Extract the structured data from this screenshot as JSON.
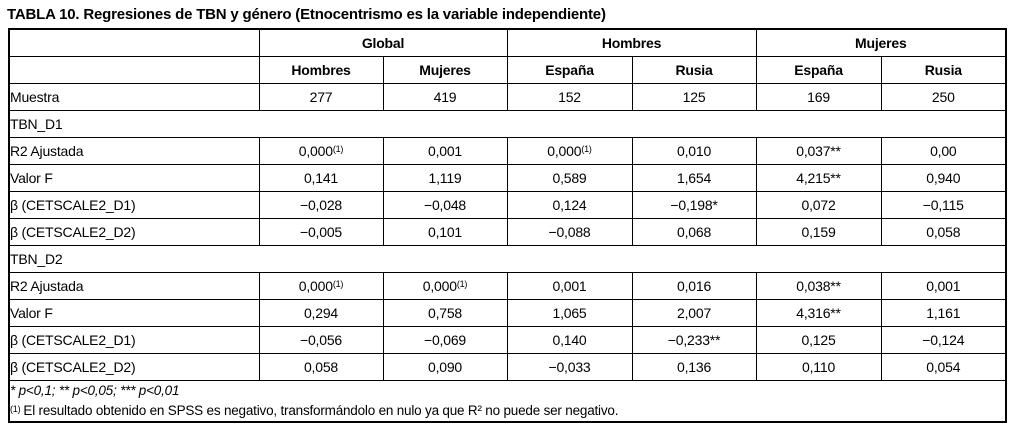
{
  "title": "TABLA 10. Regresiones de TBN y género (Etnocentrismo es la variable independiente)",
  "table": {
    "group_headers": [
      {
        "label": "Global"
      },
      {
        "label": "Hombres"
      },
      {
        "label": "Mujeres"
      }
    ],
    "sub_headers": [
      "Hombres",
      "Mujeres",
      "España",
      "Rusia",
      "España",
      "Rusia"
    ],
    "rows": [
      {
        "type": "data",
        "label": "Muestra",
        "values": [
          "277",
          "419",
          "152",
          "125",
          "169",
          "250"
        ]
      },
      {
        "type": "section",
        "label": "TBN_D1"
      },
      {
        "type": "data",
        "label": "R2 Ajustada",
        "values": [
          "0,000(1)",
          "0,001",
          "0,000(1)",
          "0,010",
          "0,037**",
          "0,00"
        ]
      },
      {
        "type": "data",
        "label": "Valor F",
        "values": [
          "0,141",
          "1,119",
          "0,589",
          "1,654",
          "4,215**",
          "0,940"
        ]
      },
      {
        "type": "data",
        "label": "β (CETSCALE2_D1)",
        "values": [
          "−0,028",
          "−0,048",
          "0,124",
          "−0,198*",
          "0,072",
          "−0,115"
        ]
      },
      {
        "type": "data",
        "label": "β (CETSCALE2_D2)",
        "values": [
          "−0,005",
          "0,101",
          "−0,088",
          "0,068",
          "0,159",
          "0,058"
        ]
      },
      {
        "type": "section",
        "label": "TBN_D2"
      },
      {
        "type": "data",
        "label": "R2 Ajustada",
        "values": [
          "0,000(1)",
          "0,000(1)",
          "0,001",
          "0,016",
          "0,038**",
          "0,001"
        ]
      },
      {
        "type": "data",
        "label": "Valor F",
        "values": [
          "0,294",
          "0,758",
          "1,065",
          "2,007",
          "4,316**",
          "1,161"
        ]
      },
      {
        "type": "data",
        "label": "β (CETSCALE2_D1)",
        "values": [
          "−0,056",
          "−0,069",
          "0,140",
          "−0,233**",
          "0,125",
          "−0,124"
        ]
      },
      {
        "type": "data",
        "label": "β (CETSCALE2_D2)",
        "values": [
          "0,058",
          "0,090",
          "−0,033",
          "0,136",
          "0,110",
          "0,054"
        ]
      }
    ],
    "footnotes": {
      "significance": "* p<0,1; ** p<0,05; *** p<0,01",
      "note_marker": "(1)",
      "note_text": "El resultado obtenido en SPSS es negativo, transformándolo en nulo ya que R² no puede ser negativo."
    }
  }
}
